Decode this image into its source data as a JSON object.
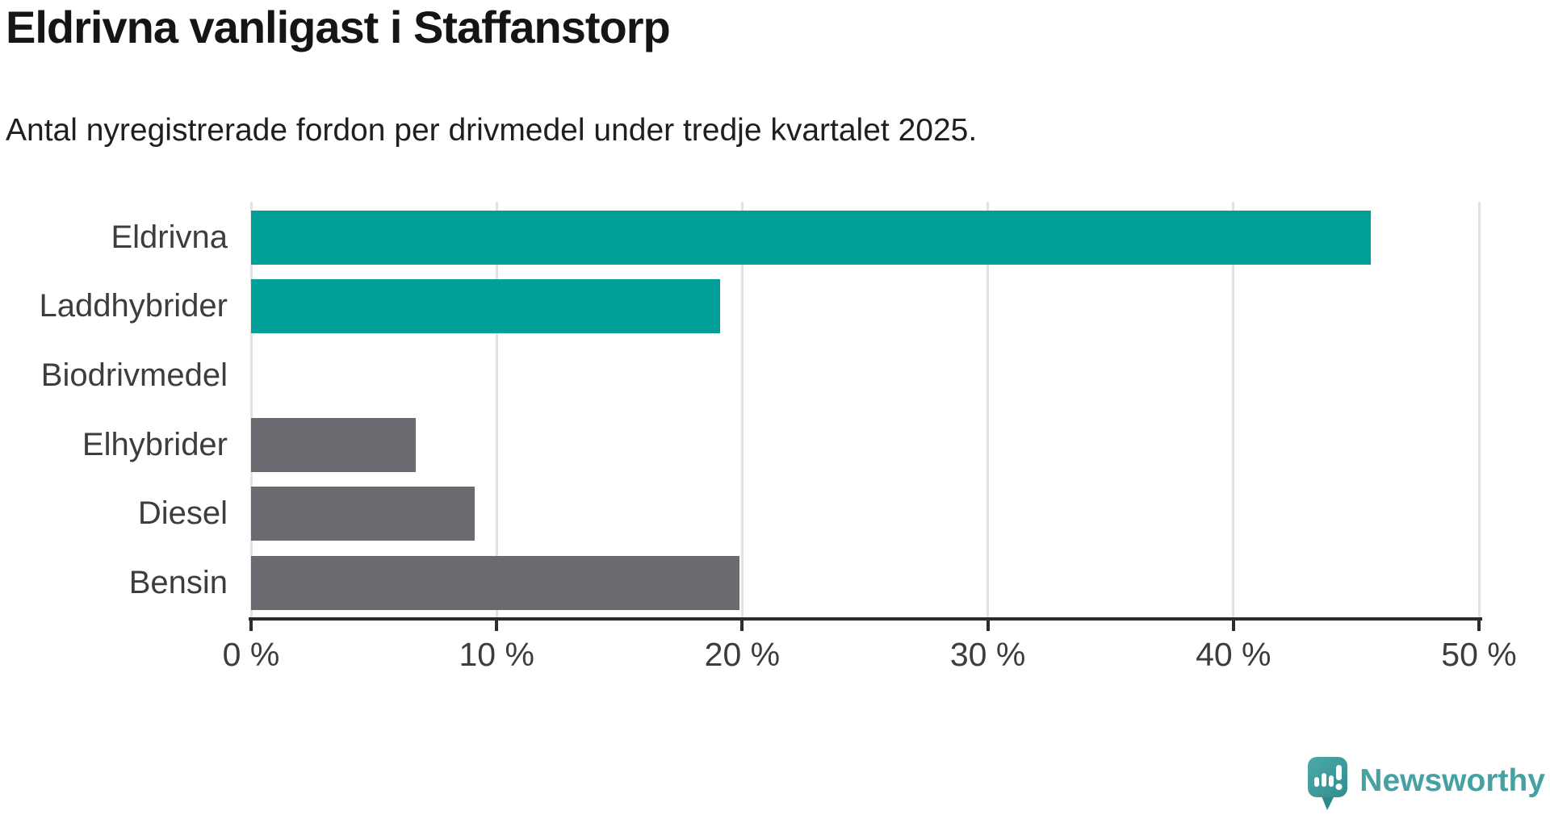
{
  "header": {
    "title": "Eldrivna vanligast i Staffanstorp",
    "subtitle": "Antal nyregistrerade fordon per drivmedel under tredje kvartalet 2025."
  },
  "chart_data": {
    "type": "bar",
    "orientation": "horizontal",
    "title": "Eldrivna vanligast i Staffanstorp",
    "subtitle": "Antal nyregistrerade fordon per drivmedel under tredje kvartalet 2025.",
    "categories": [
      "Eldrivna",
      "Laddhybrider",
      "Biodrivmedel",
      "Elhybrider",
      "Diesel",
      "Bensin"
    ],
    "values": [
      45.6,
      19.1,
      0,
      6.7,
      9.1,
      19.9
    ],
    "unit": "%",
    "bar_roles": [
      "highlight",
      "highlight",
      "default",
      "default",
      "default",
      "default"
    ],
    "xlim": [
      0,
      50
    ],
    "x_ticks": [
      0,
      10,
      20,
      30,
      40,
      50
    ],
    "x_tick_labels": [
      "0 %",
      "10 %",
      "20 %",
      "30 %",
      "40 %",
      "50 %"
    ],
    "grid": true,
    "legend": false,
    "ylabel": "",
    "xlabel": ""
  },
  "colors": {
    "highlight_bar": "#00A099",
    "default_bar": "#6C6A70",
    "gridline": "#E3E3E3",
    "axis": "#2B2B2B",
    "title_text": "#151515",
    "subtitle_text": "#1F1F1F",
    "label_text": "#3D3D3D",
    "logo_teal": "#46A2A2",
    "background": "#FFFFFF"
  },
  "branding": {
    "logo_text": "Newsworthy",
    "logo_icon": "newsworthy-speech-bubble-chart-icon"
  }
}
